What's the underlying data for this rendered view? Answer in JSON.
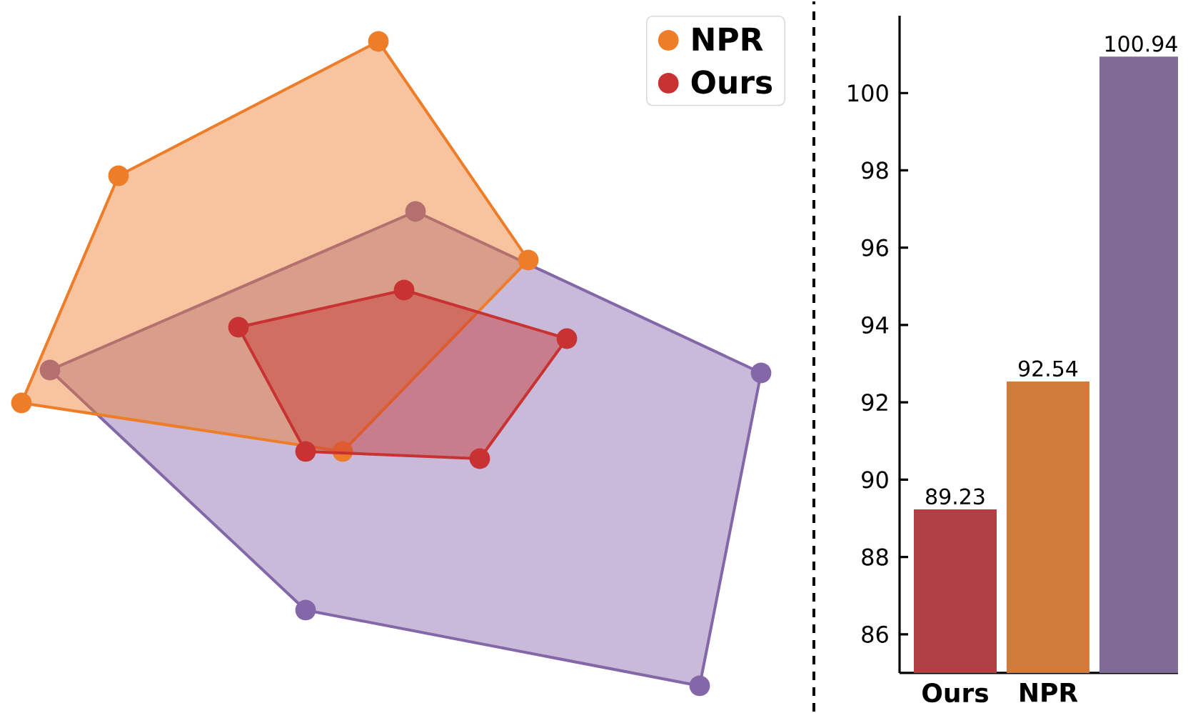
{
  "chart_data": [
    {
      "type": "other",
      "legend": "top right",
      "series": [
        {
          "name": "NPR",
          "color": "#ee7d2a"
        },
        {
          "name": "Ours",
          "color": "#c83232"
        }
      ]
    },
    {
      "type": "bar",
      "categories": [
        "Ours",
        "NPR",
        null
      ],
      "values": [
        89.23,
        92.54,
        100.94
      ],
      "colors": [
        "#b04044",
        "#d07b3c",
        "#806a96"
      ],
      "value_labels": [
        "89.23",
        "92.54",
        "100.94"
      ],
      "ylim": [
        85,
        102
      ],
      "yticks": [
        86,
        88,
        90,
        92,
        94,
        96,
        98,
        100
      ]
    }
  ]
}
